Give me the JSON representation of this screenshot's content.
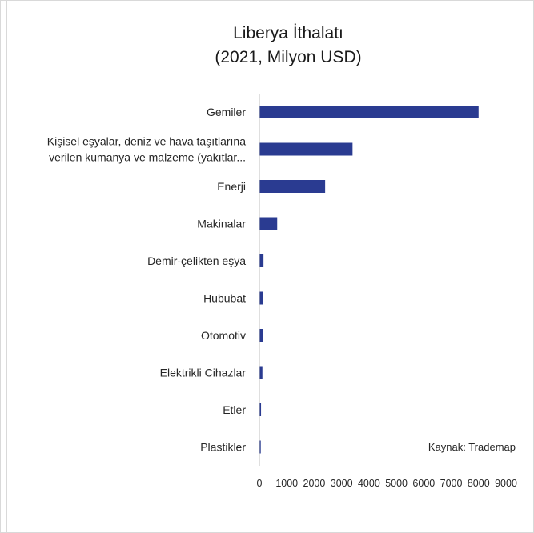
{
  "chart_data": {
    "type": "bar",
    "orientation": "horizontal",
    "title_lines": [
      "Liberya İthalatı",
      "(2021, Milyon USD)"
    ],
    "categories": [
      "Gemiler",
      [
        "Kişisel eşyalar, deniz ve hava taşıtlarına",
        "verilen kumanya ve malzeme (yakıtlar..."
      ],
      "Enerji",
      "Makinalar",
      "Demir-çelikten eşya",
      "Hububat",
      "Otomotiv",
      "Elektrikli Cihazlar",
      "Etler",
      "Plastikler"
    ],
    "values": [
      8000,
      3400,
      2400,
      650,
      150,
      130,
      120,
      110,
      60,
      50
    ],
    "xlim": [
      0,
      9000
    ],
    "xticks": [
      0,
      1000,
      2000,
      3000,
      4000,
      5000,
      6000,
      7000,
      8000,
      9000
    ],
    "bar_color": "#2a3b91",
    "grid": false,
    "annotation": "Kaynak: Trademap"
  }
}
